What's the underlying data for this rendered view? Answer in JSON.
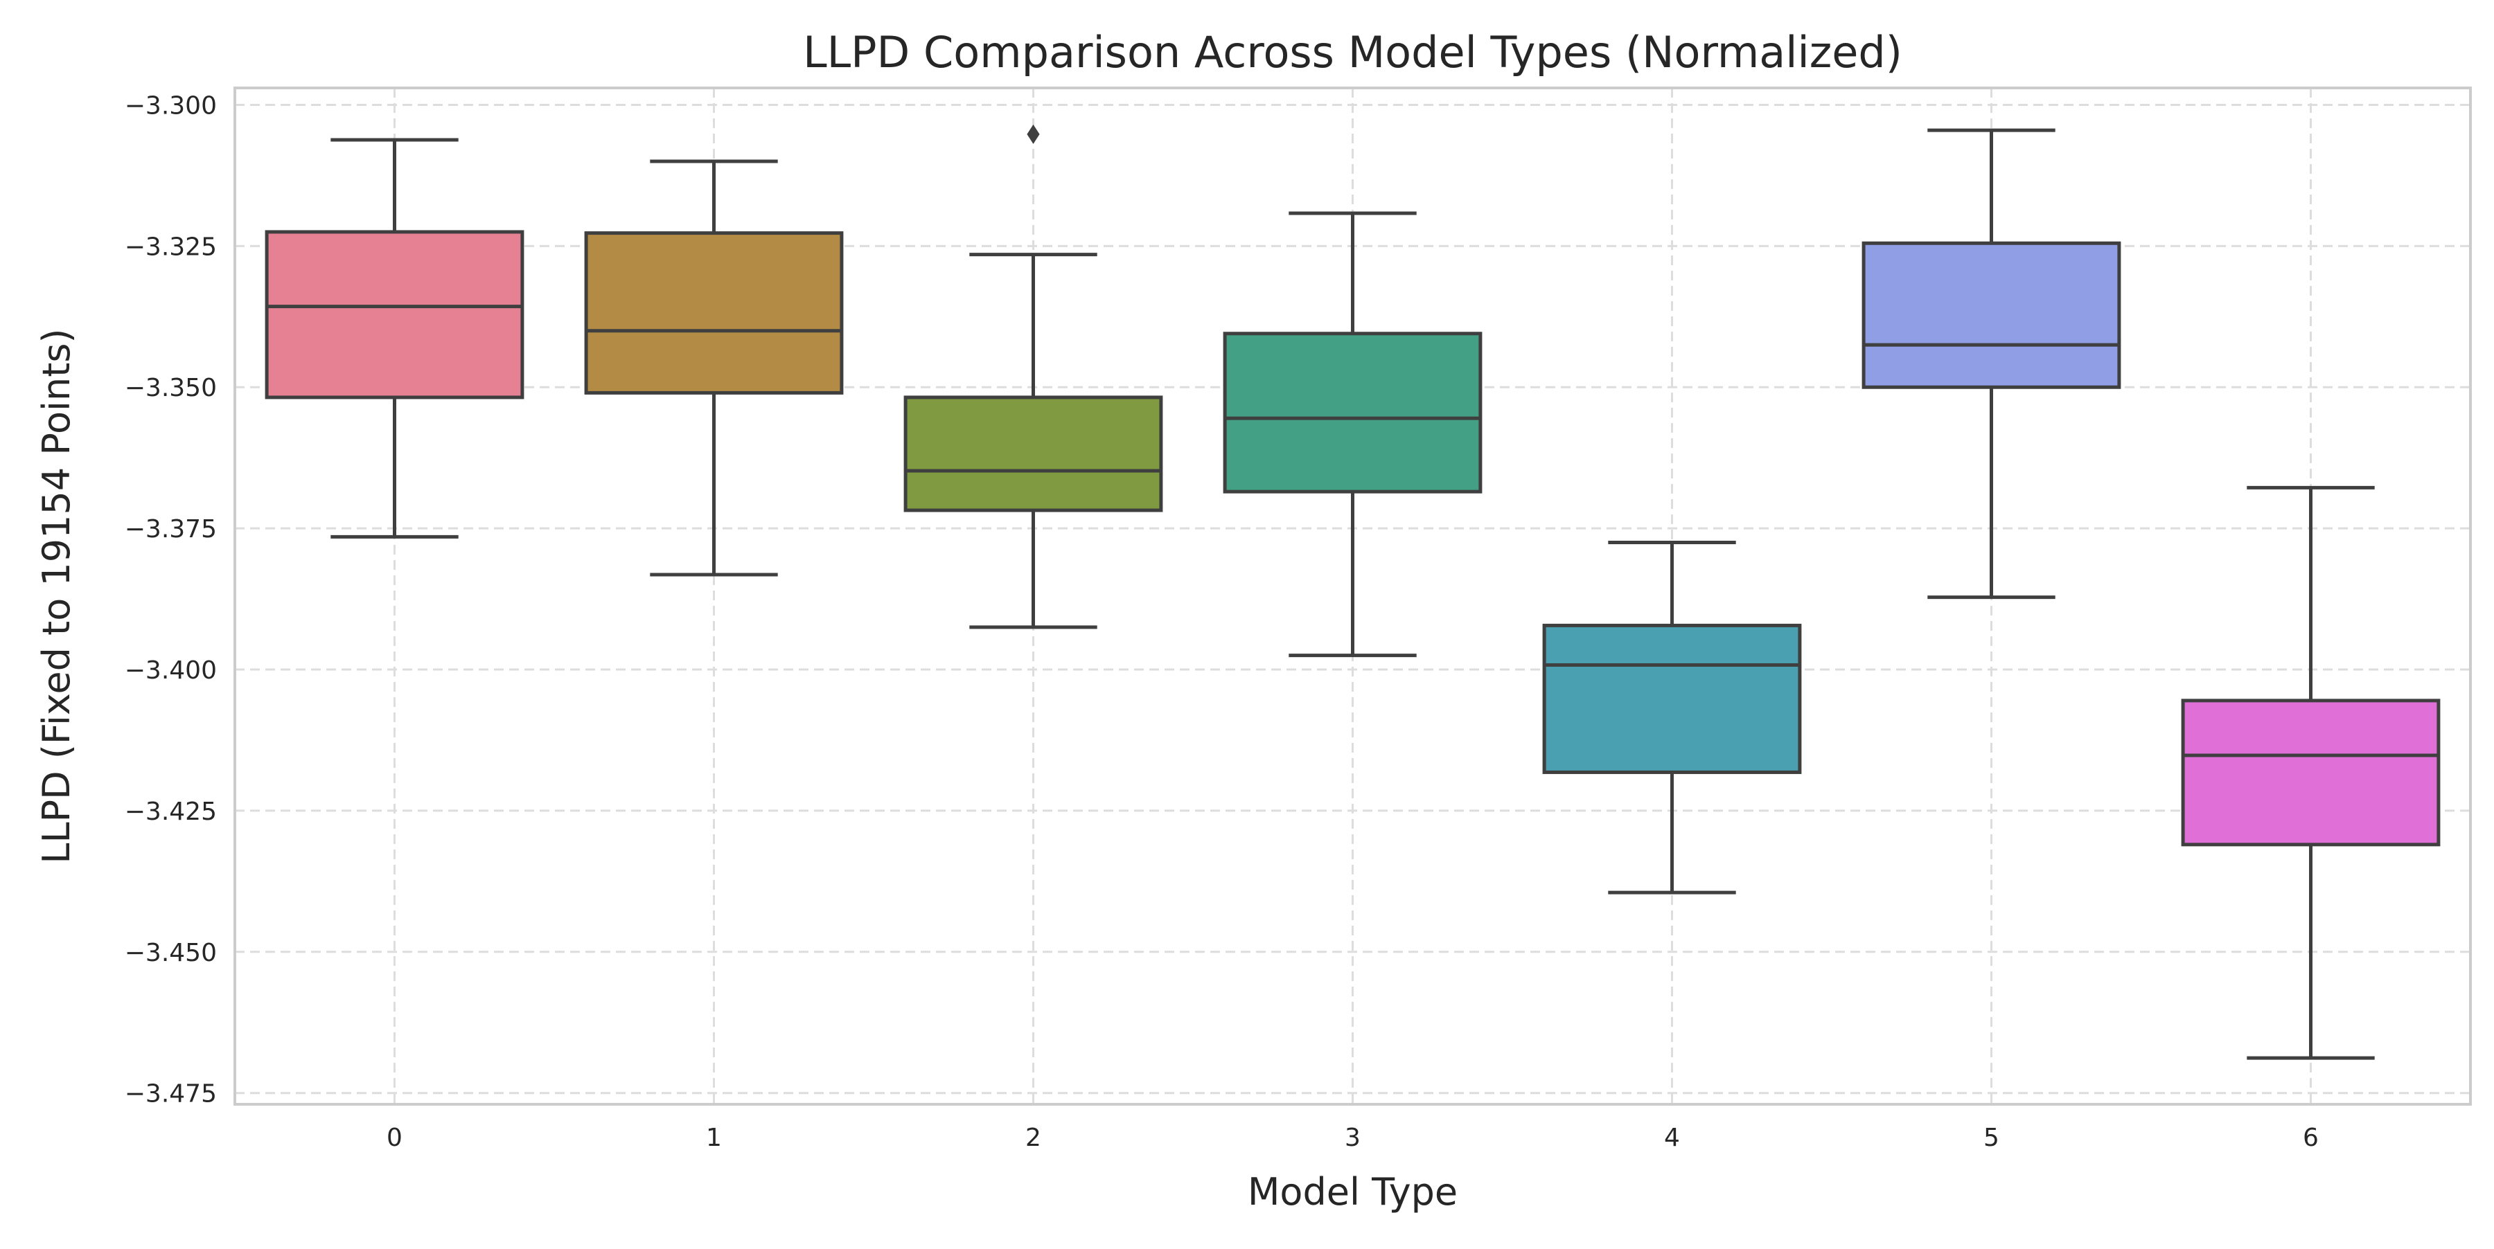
{
  "chart_data": {
    "type": "box",
    "title": "LLPD Comparison Across Model Types (Normalized)",
    "xlabel": "Model Type",
    "ylabel": "LLPD (Fixed to 19154 Points)",
    "ylim": [
      -3.477,
      -3.297
    ],
    "yticks": [
      -3.3,
      -3.325,
      -3.35,
      -3.375,
      -3.4,
      -3.425,
      -3.45,
      -3.475
    ],
    "ytick_labels": [
      "−3.300",
      "−3.325",
      "−3.350",
      "−3.375",
      "−3.400",
      "−3.425",
      "−3.450",
      "−3.475"
    ],
    "grid": true,
    "categories": [
      "0",
      "1",
      "2",
      "3",
      "4",
      "5",
      "6"
    ],
    "boxes": [
      {
        "category": "0",
        "whisker_low": -3.3765,
        "q1": -3.3518,
        "median": -3.3357,
        "q3": -3.3225,
        "whisker_high": -3.3062,
        "outliers": [],
        "color": "#e68193"
      },
      {
        "category": "1",
        "whisker_low": -3.3832,
        "q1": -3.351,
        "median": -3.34,
        "q3": -3.3227,
        "whisker_high": -3.31,
        "outliers": [],
        "color": "#b38b45"
      },
      {
        "category": "2",
        "whisker_low": -3.3925,
        "q1": -3.3718,
        "median": -3.3648,
        "q3": -3.3518,
        "whisker_high": -3.3265,
        "outliers": [
          -3.3052
        ],
        "color": "#7f9a41"
      },
      {
        "category": "3",
        "whisker_low": -3.3975,
        "q1": -3.3685,
        "median": -3.3555,
        "q3": -3.3405,
        "whisker_high": -3.3192,
        "outliers": [],
        "color": "#44a084"
      },
      {
        "category": "4",
        "whisker_low": -3.4395,
        "q1": -3.4182,
        "median": -3.3992,
        "q3": -3.3922,
        "whisker_high": -3.3775,
        "outliers": [],
        "color": "#4aa0b1"
      },
      {
        "category": "5",
        "whisker_low": -3.3872,
        "q1": -3.35,
        "median": -3.3425,
        "q3": -3.3245,
        "whisker_high": -3.3045,
        "outliers": [],
        "color": "#909fe5"
      },
      {
        "category": "6",
        "whisker_low": -3.4688,
        "q1": -3.431,
        "median": -3.4152,
        "q3": -3.4055,
        "whisker_high": -3.3678,
        "outliers": [],
        "color": "#e070d8"
      }
    ]
  }
}
